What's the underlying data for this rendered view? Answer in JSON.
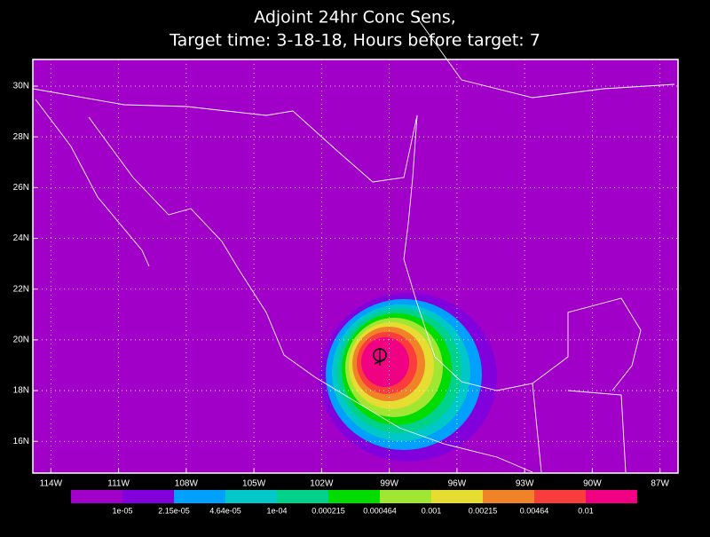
{
  "chart_data": {
    "type": "contour-map",
    "title": "Adjoint 24hr Conc Sens,",
    "subtitle": "Target time: 3-18-18, Hours before target: 7",
    "xlim": [
      -114.8,
      -86.2
    ],
    "ylim": [
      14.75,
      31.05
    ],
    "xticks": [
      {
        "value": -114,
        "label": "114W"
      },
      {
        "value": -111,
        "label": "111W"
      },
      {
        "value": -108,
        "label": "108W"
      },
      {
        "value": -105,
        "label": "105W"
      },
      {
        "value": -102,
        "label": "102W"
      },
      {
        "value": -99,
        "label": "99W"
      },
      {
        "value": -96,
        "label": "96W"
      },
      {
        "value": -93,
        "label": "93W"
      },
      {
        "value": -90,
        "label": "90W"
      },
      {
        "value": -87,
        "label": "87W"
      }
    ],
    "yticks": [
      {
        "value": 16,
        "label": "16N"
      },
      {
        "value": 18,
        "label": "18N"
      },
      {
        "value": 20,
        "label": "20N"
      },
      {
        "value": 22,
        "label": "22N"
      },
      {
        "value": 24,
        "label": "24N"
      },
      {
        "value": 26,
        "label": "26N"
      },
      {
        "value": 28,
        "label": "28N"
      },
      {
        "value": 30,
        "label": "30N"
      }
    ],
    "grid": true,
    "background": "#a000c8",
    "levels": [
      {
        "value": 1e-05,
        "label": "1e-05"
      },
      {
        "value": 2.15e-05,
        "label": "2.15e-05"
      },
      {
        "value": 4.64e-05,
        "label": "4.64e-05"
      },
      {
        "value": 0.0001,
        "label": "1e-04"
      },
      0.000215,
      0.000464,
      0.001,
      0.00215,
      0.00464,
      0.01
    ],
    "colors": [
      "#a000c8",
      "#8200dc",
      "#00a0ff",
      "#00c8c8",
      "#00d28c",
      "#00dc00",
      "#a0e632",
      "#e6dc32",
      "#f08228",
      "#fa3c3c",
      "#f00082"
    ]
  }
}
